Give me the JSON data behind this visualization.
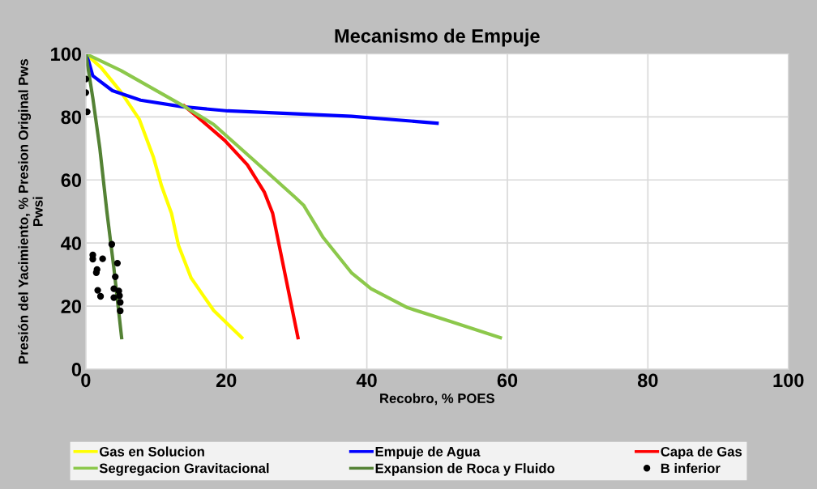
{
  "chart_data": {
    "type": "line",
    "title": "Mecanismo de Empuje",
    "xlabel": "Recobro, % POES",
    "ylabel": "Presión del Yacimiento, % Presion Original Pws\nPwsi",
    "xlim": [
      0,
      100
    ],
    "xticks": [
      0,
      20,
      40,
      60,
      80,
      100
    ],
    "ylim": [
      0,
      100
    ],
    "yticks": [
      0,
      20,
      40,
      60,
      80,
      100
    ],
    "grid": true,
    "legend": "bottom",
    "marker": "none",
    "line_style": "solid",
    "series": [
      {
        "name": "Gas en Solucion",
        "color": "#ffff00",
        "x": [
          0,
          2.2,
          5,
          7.6,
          9.6,
          10.8,
          12.2,
          13.2,
          15,
          18.2,
          22.2
        ],
        "values": [
          100,
          95.6,
          87.9,
          79.3,
          67.4,
          58,
          49.4,
          39.2,
          28.9,
          18.6,
          10
        ]
      },
      {
        "name": "Empuje de Agua",
        "color": "#0000ff",
        "x": [
          0,
          0.4,
          1,
          3.8,
          7.8,
          13.8,
          20.2,
          37.8,
          50
        ],
        "values": [
          100,
          97.7,
          93,
          88.3,
          85.3,
          83.2,
          81.9,
          80.2,
          78
        ]
      },
      {
        "name": "Capa de Gas",
        "color": "#ff0000",
        "x": [
          14,
          15.8,
          19.8,
          23,
          25.4,
          26.6,
          30.2
        ],
        "values": [
          83.5,
          80.2,
          72.5,
          64.8,
          56.2,
          49.4,
          10
        ]
      },
      {
        "name": "Segregacion Gravitacional",
        "color": "#8cc84b",
        "x": [
          0,
          5,
          13.8,
          18.2,
          23.8,
          29.8,
          31,
          33.8,
          37.8,
          40.6,
          45.8,
          51.8,
          59
        ],
        "values": [
          100,
          94.7,
          83.6,
          77.6,
          66.5,
          54.5,
          52,
          41.7,
          30.6,
          25.5,
          19.5,
          15.2,
          10
        ]
      },
      {
        "name": "Expansion de Roca y Fluido",
        "color": "#548235",
        "x": [
          0,
          1,
          2,
          3,
          4,
          5.1
        ],
        "values": [
          100,
          86,
          70,
          50,
          32,
          10
        ]
      },
      {
        "name": "B inferior",
        "type": "scatter",
        "marker": "circle",
        "color": "#000000",
        "x": [
          0,
          0,
          0.2,
          3.7,
          1,
          1,
          2.4,
          4.5,
          1.6,
          1.5,
          4.2,
          1.7,
          2.1,
          4,
          4.7,
          4,
          4.8,
          4.9,
          4.9
        ],
        "values": [
          92,
          87.7,
          81.6,
          39.6,
          36.2,
          34.9,
          35,
          33.6,
          31.6,
          30.6,
          29.3,
          25,
          23.1,
          25.5,
          24.8,
          22.7,
          23.3,
          21.2,
          18.5
        ]
      }
    ]
  }
}
